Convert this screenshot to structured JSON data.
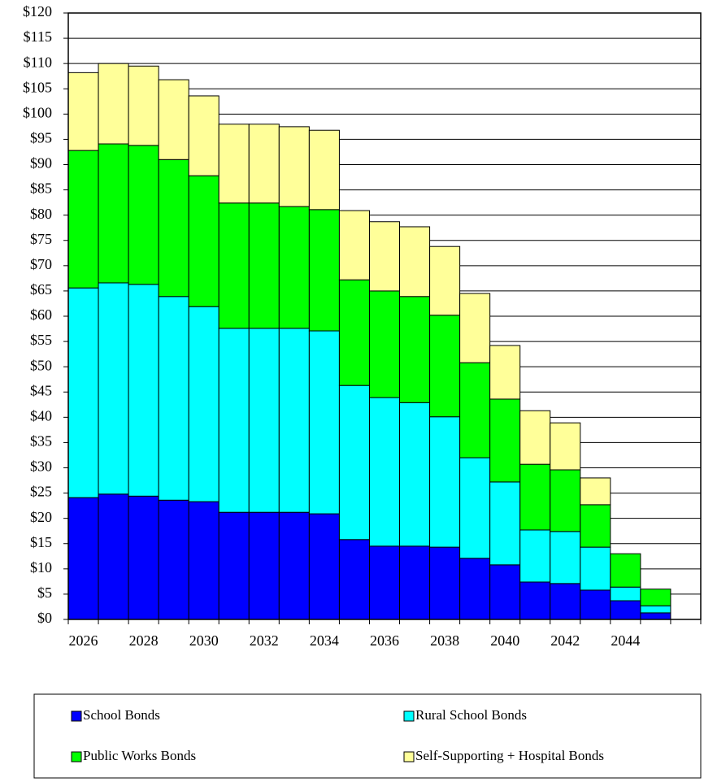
{
  "chart_data": {
    "type": "stacked-bar",
    "categories": [
      "2026",
      null,
      "2028",
      null,
      "2030",
      null,
      "2032",
      null,
      "2034",
      null,
      "2036",
      null,
      "2038",
      null,
      "2040",
      null,
      "2042",
      null,
      "2044",
      null
    ],
    "series": [
      {
        "name": "School Bonds",
        "color": "#0000ff",
        "values": [
          24.1,
          24.8,
          24.4,
          23.6,
          23.3,
          21.2,
          21.2,
          21.2,
          20.9,
          15.8,
          14.5,
          14.5,
          14.3,
          12.1,
          10.8,
          7.4,
          7.1,
          5.8,
          3.7,
          1.3
        ]
      },
      {
        "name": "Rural School Bonds",
        "color": "#00ffff",
        "values": [
          41.5,
          41.8,
          41.9,
          40.3,
          38.6,
          36.4,
          36.4,
          36.4,
          36.2,
          30.5,
          29.4,
          28.4,
          25.8,
          19.9,
          16.4,
          10.3,
          10.3,
          8.5,
          2.7,
          1.4
        ]
      },
      {
        "name": "Public Works Bonds",
        "color": "#00ff00",
        "values": [
          27.2,
          27.5,
          27.5,
          27.1,
          25.9,
          24.8,
          24.8,
          24.1,
          24.0,
          20.9,
          21.1,
          21.0,
          20.1,
          18.8,
          16.4,
          13.0,
          12.2,
          8.4,
          6.6,
          3.3
        ]
      },
      {
        "name": "Self-Supporting + Hospital Bonds",
        "color": "#ffff99",
        "values": [
          15.4,
          15.9,
          15.7,
          15.8,
          15.8,
          15.6,
          15.6,
          15.8,
          15.7,
          13.7,
          13.7,
          13.8,
          13.6,
          13.7,
          10.6,
          10.6,
          9.3,
          5.3,
          0,
          0
        ]
      }
    ],
    "ylim": [
      0,
      120
    ],
    "yticks": [
      {
        "value": 0,
        "label": "$0"
      },
      {
        "value": 5,
        "label": "$5"
      },
      {
        "value": 10,
        "label": "$10"
      },
      {
        "value": 15,
        "label": "$15"
      },
      {
        "value": 20,
        "label": "$20"
      },
      {
        "value": 25,
        "label": "$25"
      },
      {
        "value": 30,
        "label": "$30"
      },
      {
        "value": 35,
        "label": "$35"
      },
      {
        "value": 40,
        "label": "$40"
      },
      {
        "value": 45,
        "label": "$45"
      },
      {
        "value": 50,
        "label": "$50"
      },
      {
        "value": 55,
        "label": "$55"
      },
      {
        "value": 60,
        "label": "$60"
      },
      {
        "value": 65,
        "label": "$65"
      },
      {
        "value": 70,
        "label": "$70"
      },
      {
        "value": 75,
        "label": "$75"
      },
      {
        "value": 80,
        "label": "$80"
      },
      {
        "value": 85,
        "label": "$85"
      },
      {
        "value": 90,
        "label": "$90"
      },
      {
        "value": 95,
        "label": "$95"
      },
      {
        "value": 100,
        "label": "$100"
      },
      {
        "value": 105,
        "label": "$105"
      },
      {
        "value": 110,
        "label": "$110"
      },
      {
        "value": 115,
        "label": "$115"
      },
      {
        "value": 120,
        "label": "$120"
      }
    ],
    "grid": true
  }
}
